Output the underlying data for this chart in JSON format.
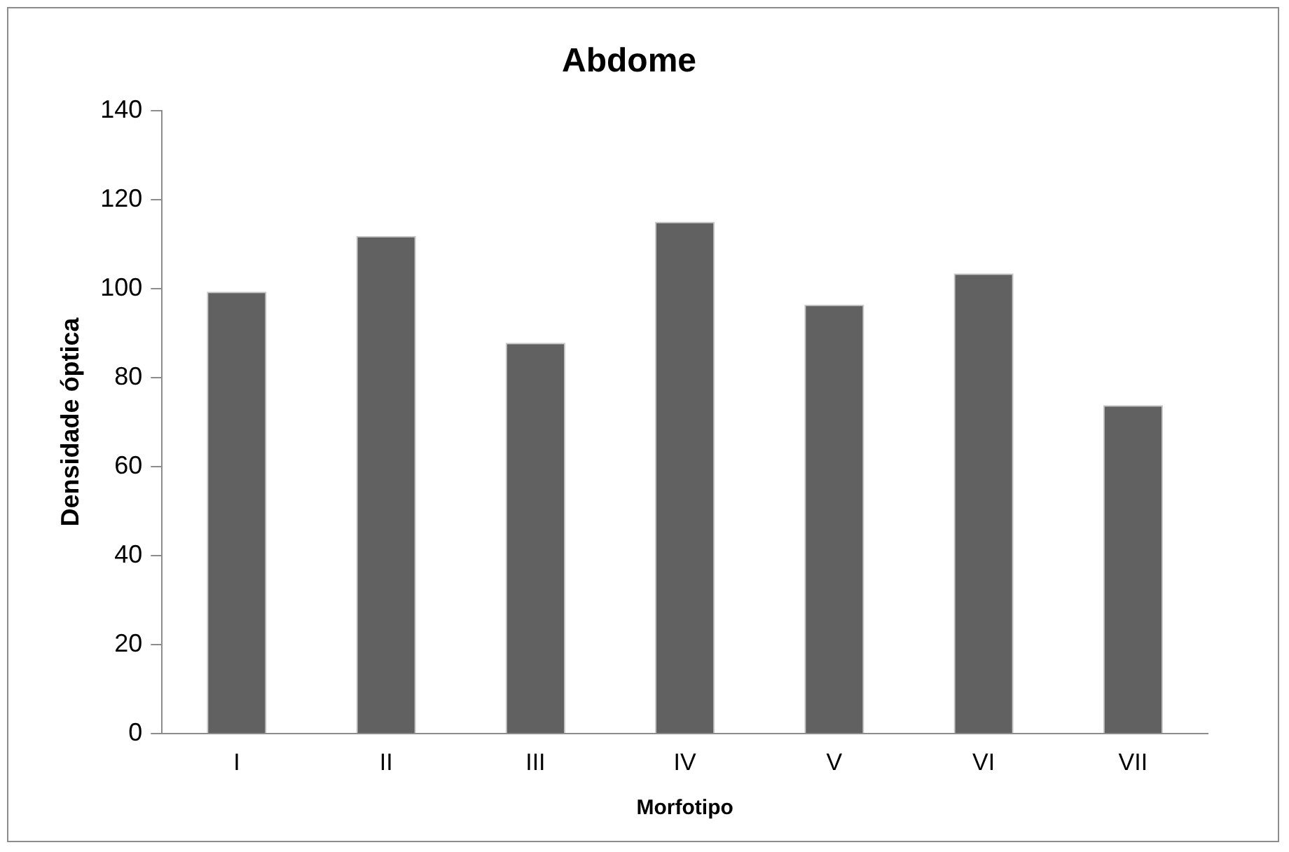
{
  "chart_data": {
    "type": "bar",
    "title": "Abdome",
    "xlabel": "Morfotipo",
    "ylabel": "Densidade óptica",
    "categories": [
      "I",
      "II",
      "III",
      "IV",
      "V",
      "VI",
      "VII"
    ],
    "values": [
      99.3,
      111.8,
      87.8,
      115.0,
      96.4,
      103.4,
      73.8
    ],
    "color": "#616161",
    "ylim": [
      0,
      140
    ],
    "yticks": [
      0,
      20,
      40,
      60,
      80,
      100,
      120,
      140
    ],
    "grid": false,
    "legend": false
  }
}
